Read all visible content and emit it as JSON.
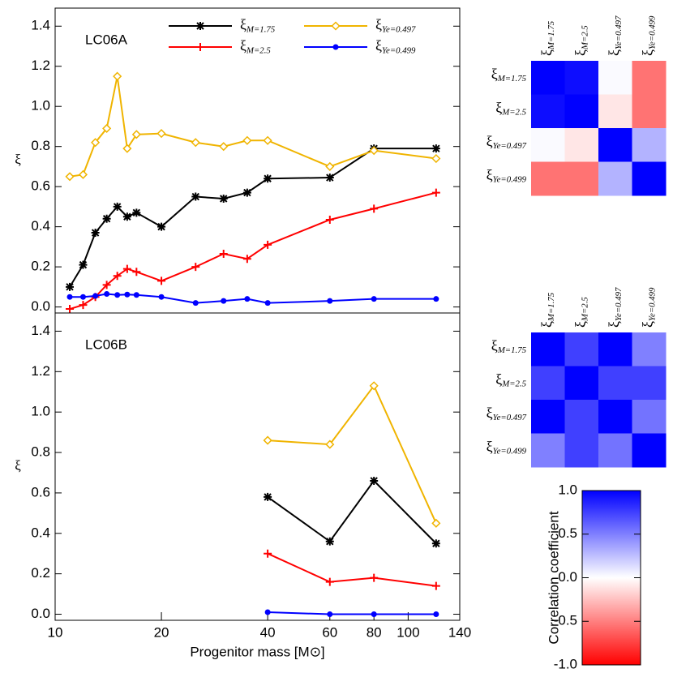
{
  "chart_data": [
    {
      "type": "line",
      "annotation": "LC06A",
      "ylabel": "ξ",
      "xscale": "log",
      "xlim": [
        10,
        140
      ],
      "ylim": [
        -0.03,
        1.49
      ],
      "yticks": [
        {
          "value": 0,
          "label": "0.0"
        },
        {
          "value": 0.2,
          "label": "0.2"
        },
        {
          "value": 0.4,
          "label": "0.4"
        },
        {
          "value": 0.6,
          "label": "0.6"
        },
        {
          "value": 0.8,
          "label": "0.8"
        },
        {
          "value": 1,
          "label": "1.0"
        },
        {
          "value": 1.2,
          "label": "1.2"
        },
        {
          "value": 1.4,
          "label": "1.4"
        }
      ],
      "legend": "upper center",
      "x": [
        11,
        12,
        13,
        14,
        15,
        16,
        17,
        20,
        25,
        30,
        35,
        40,
        60,
        80,
        120
      ],
      "series": [
        {
          "name": "ξM=1.75",
          "color": "#000000",
          "marker": "star",
          "values": [
            0.1,
            0.21,
            0.37,
            0.44,
            0.5,
            0.45,
            0.47,
            0.4,
            0.55,
            0.54,
            0.57,
            0.64,
            0.645,
            0.79,
            0.79
          ]
        },
        {
          "name": "ξM=2.5",
          "color": "#ff0000",
          "marker": "plus",
          "values": [
            -0.01,
            0.01,
            0.05,
            0.11,
            0.155,
            0.19,
            0.175,
            0.13,
            0.2,
            0.265,
            0.24,
            0.31,
            0.435,
            0.49,
            0.57
          ]
        },
        {
          "name": "ξYe=0.497",
          "color": "#f0b400",
          "marker": "diamond",
          "values": [
            0.65,
            0.66,
            0.82,
            0.89,
            1.15,
            0.79,
            0.86,
            0.865,
            0.82,
            0.8,
            0.83,
            0.83,
            0.7,
            0.78,
            0.74
          ]
        },
        {
          "name": "ξYe=0.499",
          "color": "#0000ff",
          "marker": "circle",
          "values": [
            0.05,
            0.05,
            0.055,
            0.065,
            0.06,
            0.062,
            0.06,
            0.05,
            0.02,
            0.03,
            0.04,
            0.02,
            0.03,
            0.04,
            0.04
          ]
        }
      ]
    },
    {
      "type": "line",
      "annotation": "LC06B",
      "ylabel": "ξ",
      "xlabel": "Progenitor mass [M⊙]",
      "xscale": "log",
      "xlim": [
        10,
        140
      ],
      "ylim": [
        -0.03,
        1.49
      ],
      "xticks": [
        10,
        20,
        40,
        60,
        80,
        100,
        140
      ],
      "yticks": [
        {
          "value": 0,
          "label": "0.0"
        },
        {
          "value": 0.2,
          "label": "0.2"
        },
        {
          "value": 0.4,
          "label": "0.4"
        },
        {
          "value": 0.6,
          "label": "0.6"
        },
        {
          "value": 0.8,
          "label": "0.8"
        },
        {
          "value": 1,
          "label": "1.0"
        },
        {
          "value": 1.2,
          "label": "1.2"
        },
        {
          "value": 1.4,
          "label": "1.4"
        }
      ],
      "x": [
        40,
        60,
        80,
        120
      ],
      "series": [
        {
          "name": "ξM=1.75",
          "color": "#000000",
          "marker": "star",
          "values": [
            0.58,
            0.36,
            0.66,
            0.35
          ]
        },
        {
          "name": "ξM=2.5",
          "color": "#ff0000",
          "marker": "plus",
          "values": [
            0.3,
            0.16,
            0.18,
            0.14
          ]
        },
        {
          "name": "ξYe=0.497",
          "color": "#f0b400",
          "marker": "diamond",
          "values": [
            0.86,
            0.84,
            1.13,
            0.45
          ]
        },
        {
          "name": "ξYe=0.499",
          "color": "#0000ff",
          "marker": "circle",
          "values": [
            0.01,
            0.0,
            0.0,
            0.0
          ]
        }
      ]
    },
    {
      "type": "heatmap",
      "labels": [
        "ξM=1.75",
        "ξM=2.5",
        "ξYe=0.497",
        "ξYe=0.499"
      ],
      "values": [
        [
          1,
          0.95,
          0.02,
          -0.55
        ],
        [
          0.95,
          1,
          -0.1,
          -0.55
        ],
        [
          0.02,
          -0.1,
          1,
          0.3
        ],
        [
          -0.55,
          -0.55,
          0.3,
          1
        ]
      ]
    },
    {
      "type": "heatmap",
      "labels": [
        "ξM=1.75",
        "ξM=2.5",
        "ξYe=0.497",
        "ξYe=0.499"
      ],
      "values": [
        [
          1,
          0.75,
          1,
          0.5
        ],
        [
          0.75,
          1,
          0.75,
          0.75
        ],
        [
          1,
          0.75,
          1,
          0.55
        ],
        [
          0.5,
          0.75,
          0.55,
          1
        ]
      ]
    }
  ],
  "colorbar": {
    "label": "Correlation coefficient",
    "lim": [
      -1,
      1
    ],
    "colors": [
      "#ff0000",
      "#ffffff",
      "#0000ff"
    ],
    "ticks": [
      {
        "value": 1,
        "label": "1.0"
      },
      {
        "value": 0.5,
        "label": "0.5"
      },
      {
        "value": 0,
        "label": "0.0"
      },
      {
        "value": -0.5,
        "label": "-0.5"
      },
      {
        "value": -1,
        "label": "-1.0"
      }
    ]
  }
}
